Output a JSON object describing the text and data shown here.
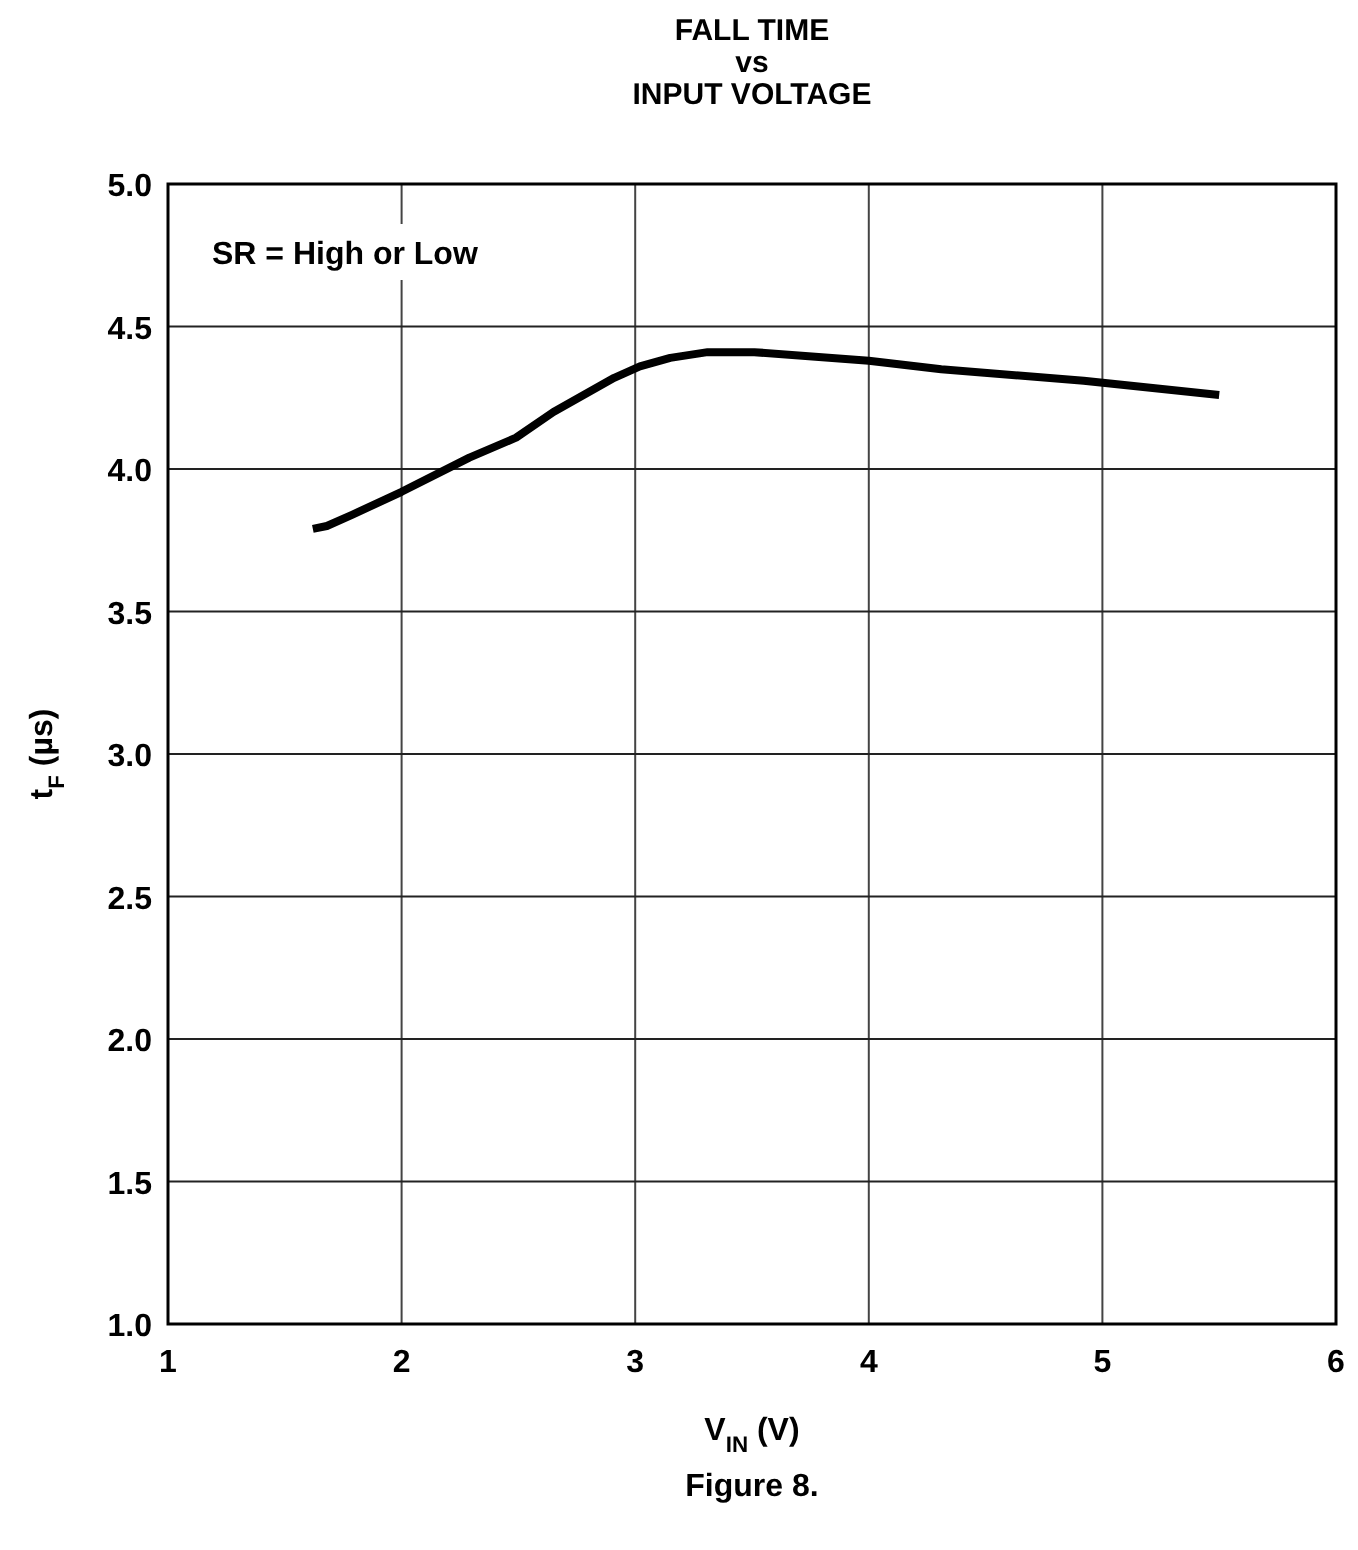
{
  "chart_data": {
    "type": "line",
    "title": "FALL TIME\nvs\nINPUT VOLTAGE",
    "xlabel": "V$_{IN}$ (V)",
    "ylabel": "t$_{F}$ (µs)",
    "annotations": [
      "SR = High or Low",
      "Figure 8."
    ],
    "x": [
      1.62,
      1.68,
      1.79,
      2.0,
      2.29,
      2.49,
      2.65,
      2.91,
      3.02,
      3.15,
      3.31,
      3.51,
      4.0,
      4.31,
      4.92,
      5.5
    ],
    "series": [
      {
        "color": "#000000",
        "values": [
          3.79,
          3.8,
          3.84,
          3.92,
          4.04,
          4.11,
          4.2,
          4.32,
          4.36,
          4.39,
          4.41,
          4.41,
          4.38,
          4.35,
          4.31,
          4.26
        ]
      }
    ],
    "xlim": [
      1,
      6
    ],
    "xticks": [
      1,
      2,
      3,
      4,
      5,
      6
    ],
    "ylim": [
      1.0,
      5.0
    ],
    "yticks": [
      {
        "value": 1,
        "label": "1.0"
      },
      1.5,
      {
        "value": 2,
        "label": "2.0"
      },
      2.5,
      {
        "value": 3,
        "label": "3.0"
      },
      3.5,
      {
        "value": 4,
        "label": "4.0"
      },
      4.5,
      {
        "value": 5,
        "label": "5.0"
      }
    ],
    "grid": true,
    "marker": "none",
    "line_style": "solid"
  }
}
